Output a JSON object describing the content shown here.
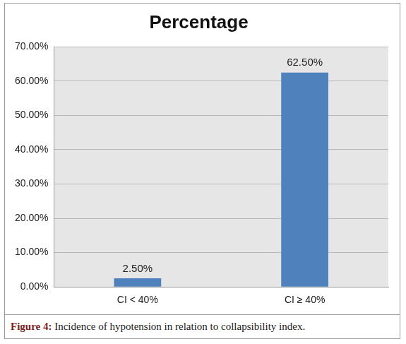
{
  "chart_data": {
    "type": "bar",
    "title": "Percentage",
    "categories": [
      "CI < 40%",
      "CI ≥ 40%"
    ],
    "values": [
      2.5,
      62.5
    ],
    "value_labels": [
      "2.50%",
      "62.50%"
    ],
    "data_labels": true,
    "color": "#4f81bd",
    "ylim": [
      0,
      70
    ],
    "yticks": [
      {
        "value": 0,
        "label": "0.00%"
      },
      {
        "value": 10,
        "label": "10.00%"
      },
      {
        "value": 20,
        "label": "20.00%"
      },
      {
        "value": 30,
        "label": "30.00%"
      },
      {
        "value": 40,
        "label": "40.00%"
      },
      {
        "value": 50,
        "label": "50.00%"
      },
      {
        "value": 60,
        "label": "60.00%"
      },
      {
        "value": 70,
        "label": "70.00%"
      }
    ],
    "grid": true
  },
  "caption": {
    "label": "Figure 4:",
    "text": "Incidence of hypotension in relation to collapsibility index."
  }
}
